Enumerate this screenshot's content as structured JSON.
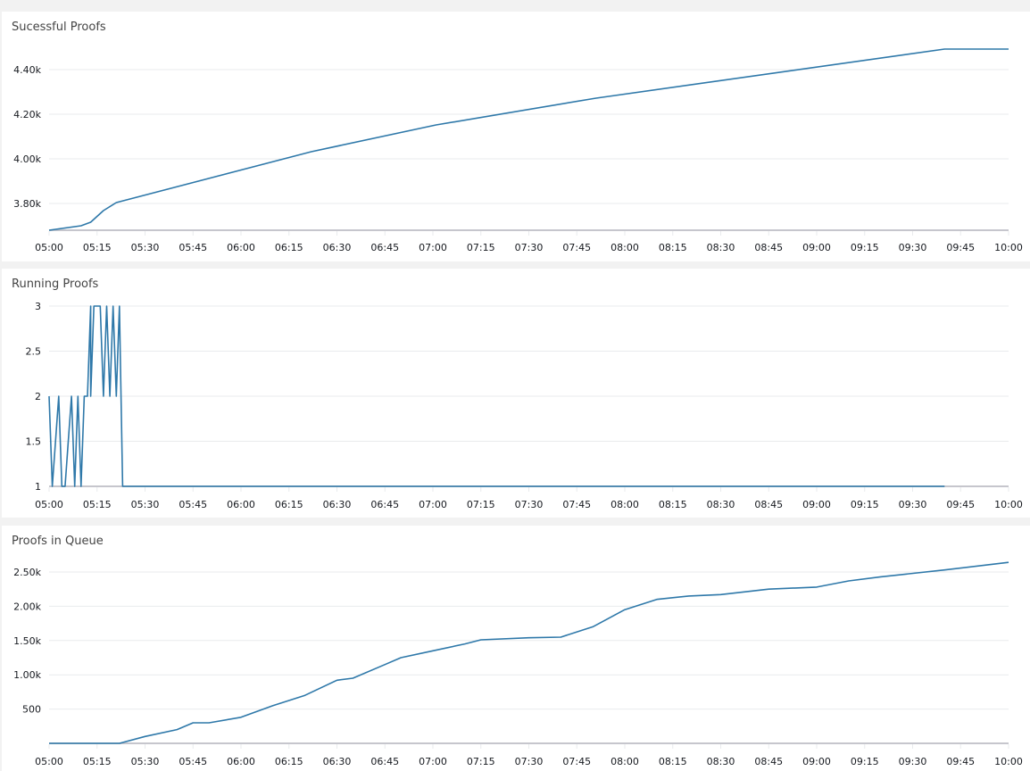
{
  "colors": {
    "series": "#2e78a9",
    "grid": "#e9ebed",
    "axis": "#c6c6cd",
    "background": "#f2f2f2"
  },
  "panels": [
    {
      "title": "Sucessful Proofs"
    },
    {
      "title": "Running Proofs"
    },
    {
      "title": "Proofs in Queue"
    }
  ],
  "chart_data": [
    {
      "type": "line",
      "title": "Sucessful Proofs",
      "xlabel": "",
      "ylabel": "",
      "x_ticks": [
        "05:00",
        "05:15",
        "05:30",
        "05:45",
        "06:00",
        "06:15",
        "06:30",
        "06:45",
        "07:00",
        "07:15",
        "07:30",
        "07:45",
        "08:00",
        "08:15",
        "08:30",
        "08:45",
        "09:00",
        "09:15",
        "09:30",
        "09:45",
        "10:00"
      ],
      "y_ticks": [
        "3.80k",
        "4.00k",
        "4.20k",
        "4.40k"
      ],
      "y_tick_values": [
        3800,
        4000,
        4200,
        4400
      ],
      "ylim": [
        3680,
        4500
      ],
      "grid": true,
      "series": [
        {
          "name": "Sucessful Proofs",
          "x": [
            "05:00",
            "05:10",
            "05:13",
            "05:17",
            "05:21",
            "06:22",
            "07:01",
            "07:51",
            "09:40",
            "10:00"
          ],
          "values": [
            3680,
            3700,
            3716,
            3768,
            3804,
            4032,
            4152,
            4272,
            4492,
            4492
          ]
        }
      ]
    },
    {
      "type": "line",
      "title": "Running Proofs",
      "xlabel": "",
      "ylabel": "",
      "x_ticks": [
        "05:00",
        "05:15",
        "05:30",
        "05:45",
        "06:00",
        "06:15",
        "06:30",
        "06:45",
        "07:00",
        "07:15",
        "07:30",
        "07:45",
        "08:00",
        "08:15",
        "08:30",
        "08:45",
        "09:00",
        "09:15",
        "09:30",
        "09:45",
        "10:00"
      ],
      "y_ticks": [
        "1",
        "1.5",
        "2",
        "2.5",
        "3"
      ],
      "y_tick_values": [
        1,
        1.5,
        2,
        2.5,
        3
      ],
      "ylim": [
        1,
        3
      ],
      "grid": true,
      "series": [
        {
          "name": "Running Proofs",
          "x": [
            "05:00",
            "05:01",
            "05:03",
            "05:04",
            "05:05",
            "05:07",
            "05:08",
            "05:09",
            "05:10",
            "05:11",
            "05:12",
            "05:13",
            "05:13",
            "05:14",
            "05:16",
            "05:17",
            "05:18",
            "05:19",
            "05:20",
            "05:21",
            "05:22",
            "05:23",
            "05:40",
            "06:40",
            "07:40",
            "08:40",
            "09:40"
          ],
          "values": [
            2,
            1,
            2,
            1,
            1,
            2,
            1,
            2,
            1,
            2,
            2,
            3,
            2,
            3,
            3,
            2,
            3,
            2,
            3,
            2,
            3,
            1,
            1,
            1,
            1,
            1,
            1
          ]
        }
      ]
    },
    {
      "type": "line",
      "title": "Proofs in Queue",
      "xlabel": "",
      "ylabel": "",
      "x_ticks": [
        "05:00",
        "05:15",
        "05:30",
        "05:45",
        "06:00",
        "06:15",
        "06:30",
        "06:45",
        "07:00",
        "07:15",
        "07:30",
        "07:45",
        "08:00",
        "08:15",
        "08:30",
        "08:45",
        "09:00",
        "09:15",
        "09:30",
        "09:45",
        "10:00"
      ],
      "y_ticks": [
        "500",
        "1.00k",
        "1.50k",
        "2.00k",
        "2.50k"
      ],
      "y_tick_values": [
        500,
        1000,
        1500,
        2000,
        2500
      ],
      "ylim": [
        0,
        2650
      ],
      "grid": true,
      "series": [
        {
          "name": "Proofs in Queue",
          "x": [
            "05:00",
            "05:22",
            "05:30",
            "05:40",
            "05:45",
            "05:50",
            "06:00",
            "06:10",
            "06:20",
            "06:30",
            "06:35",
            "06:45",
            "06:50",
            "07:00",
            "07:10",
            "07:15",
            "07:30",
            "07:40",
            "07:50",
            "08:00",
            "08:10",
            "08:20",
            "08:30",
            "08:45",
            "09:00",
            "09:10",
            "09:20",
            "09:40",
            "10:00"
          ],
          "values": [
            0,
            0,
            100,
            200,
            300,
            300,
            380,
            550,
            700,
            920,
            950,
            1150,
            1250,
            1350,
            1450,
            1510,
            1540,
            1550,
            1700,
            1950,
            2100,
            2150,
            2170,
            2250,
            2280,
            2370,
            2430,
            2530,
            2640
          ]
        }
      ]
    }
  ]
}
